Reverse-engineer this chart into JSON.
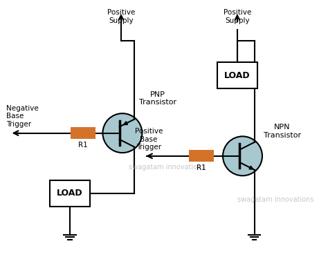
{
  "bg_color": "#ffffff",
  "line_color": "#000000",
  "transistor_circle_color": "#a8c8d0",
  "resistor_color": "#d4722a",
  "load_box_color": "#ffffff",
  "watermark_color": "#b0b0b0",
  "texts": {
    "pos_supply_left": "Positive\nSupply",
    "pos_supply_right": "Positive\nSupply",
    "pnp_label": "PNP\nTransistor",
    "npn_label": "NPN\nTransistor",
    "neg_base_trigger": "Negative\nBase\nTrigger",
    "pos_base_trigger": "Positive\nBase\nTrigger",
    "r1_left": "R1",
    "r1_right": "R1",
    "load_top": "LOAD",
    "load_bottom": "LOAD",
    "watermark": "swagatam innovations"
  }
}
